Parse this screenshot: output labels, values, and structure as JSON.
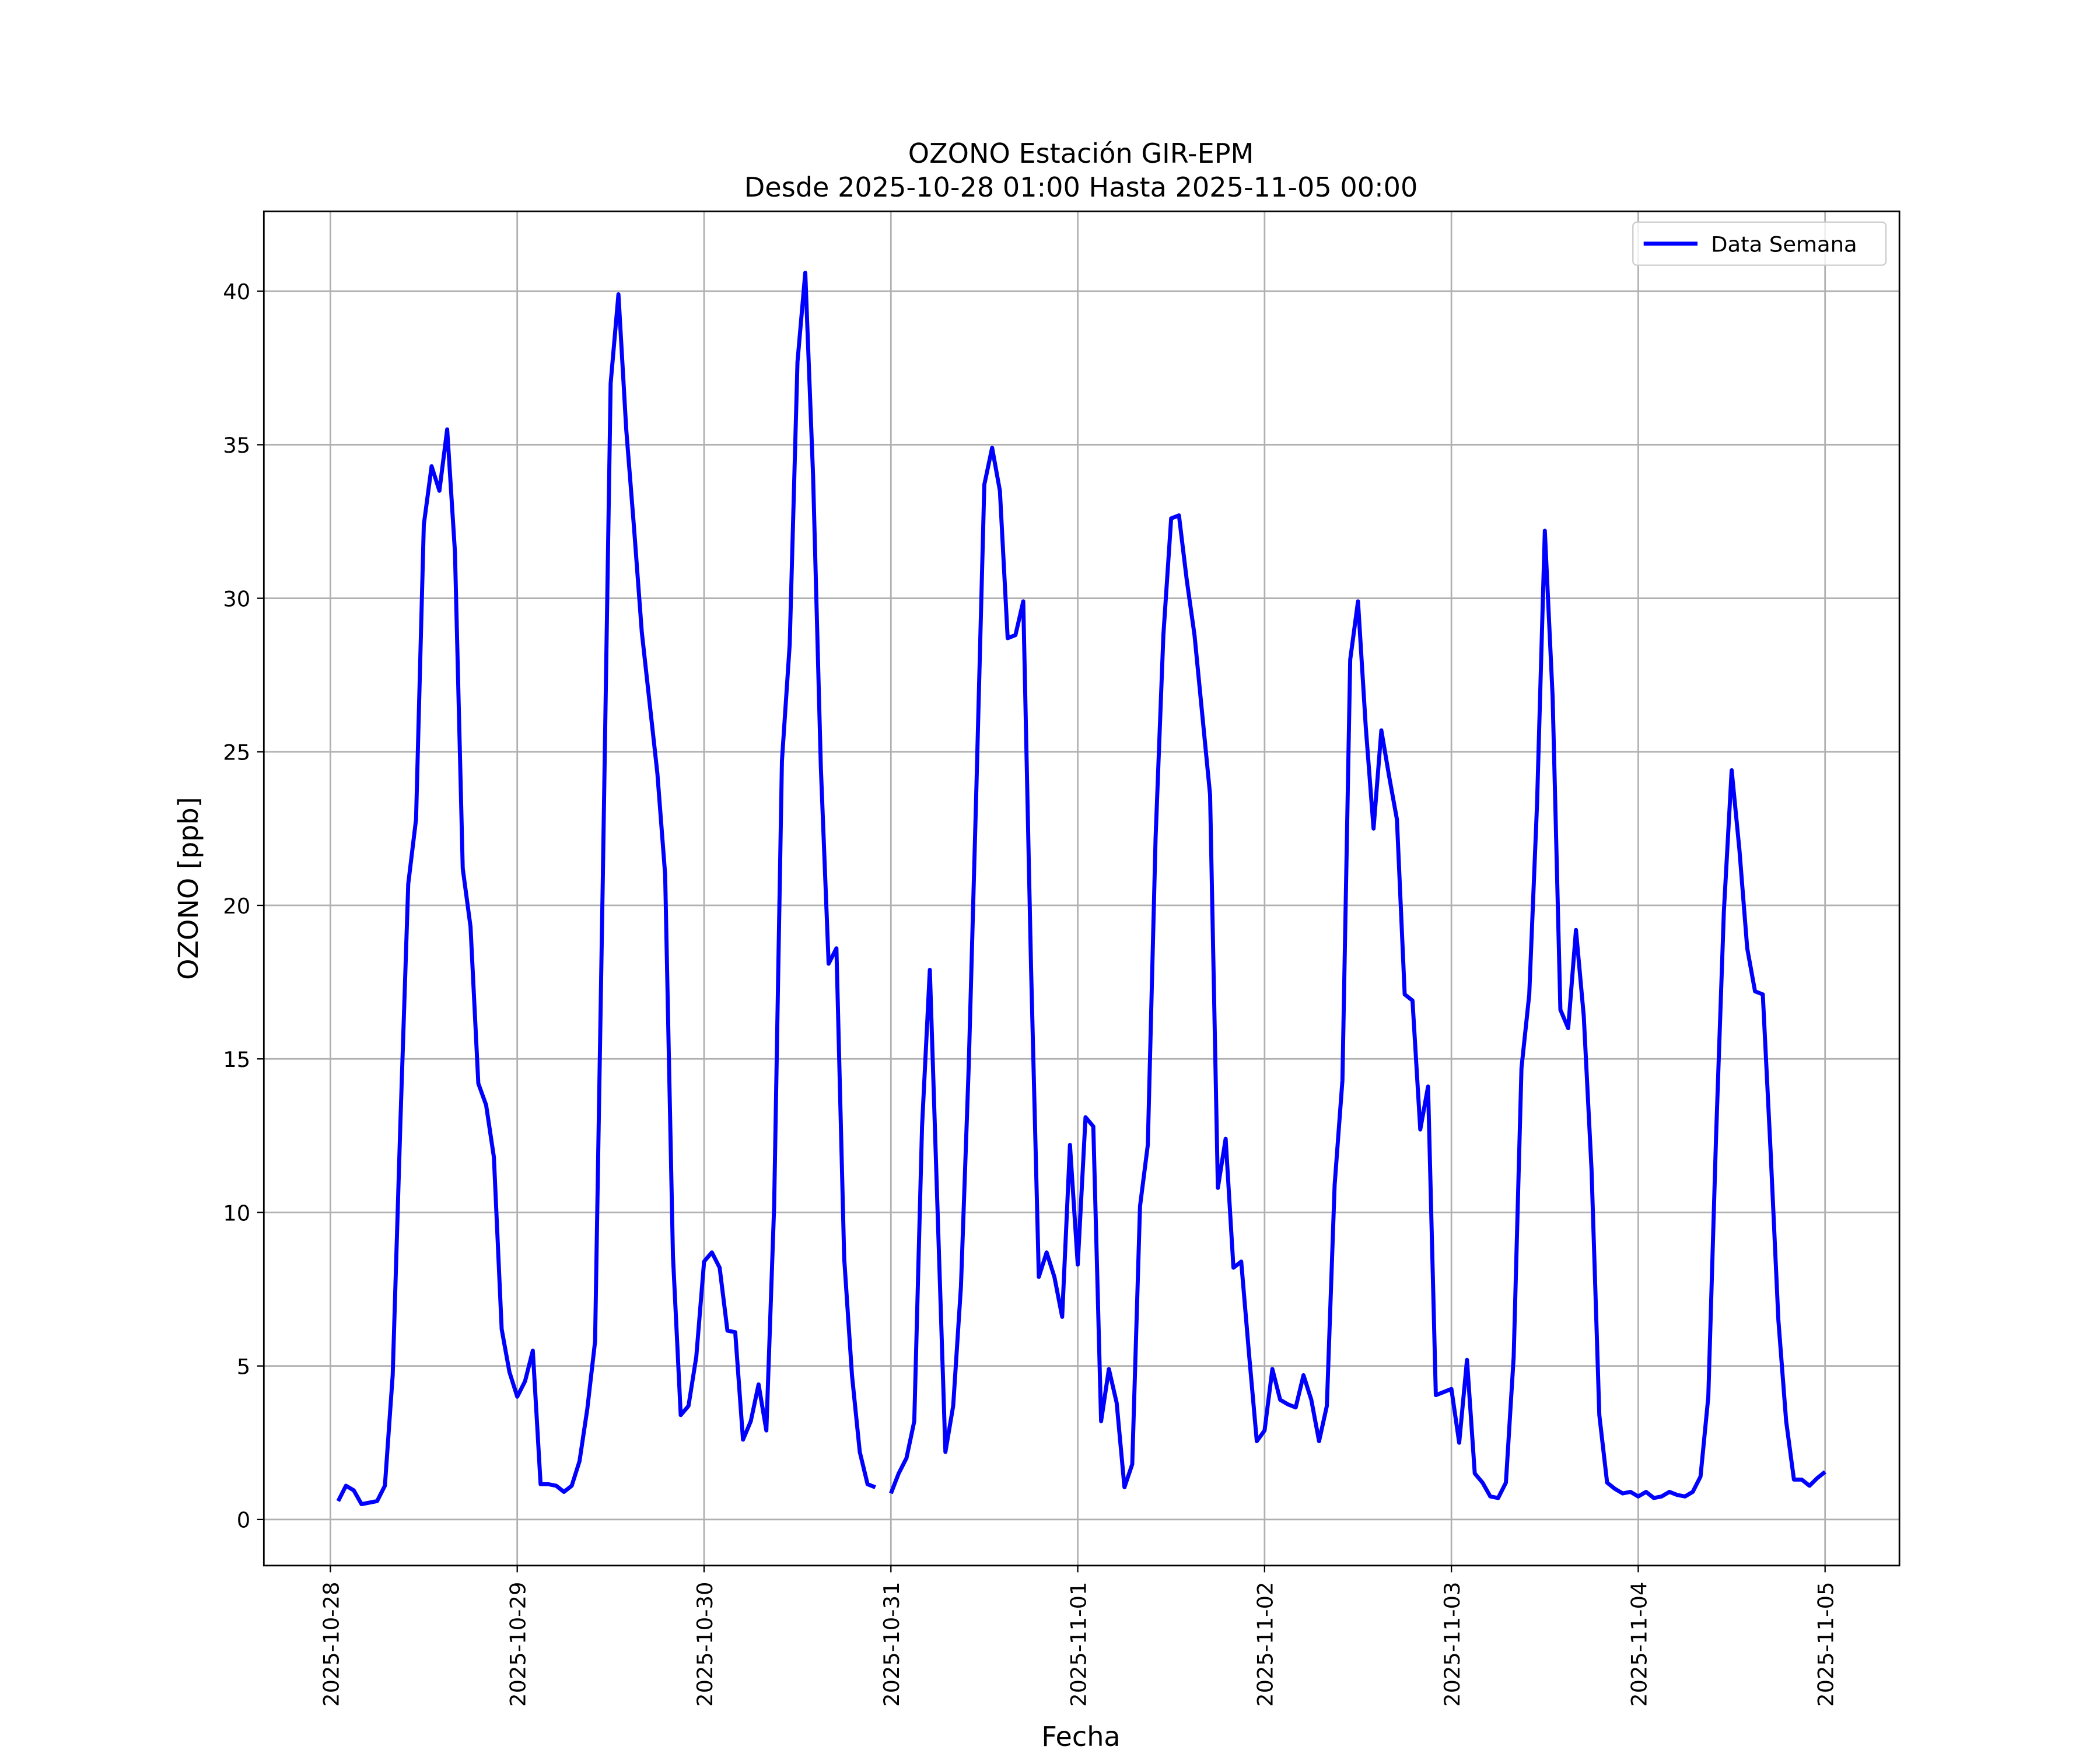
{
  "chart_data": {
    "type": "line",
    "title": "OZONO Estación GIR-EPM",
    "subtitle": "Desde 2025-10-28 01:00 Hasta 2025-11-05 00:00",
    "x_label": "Fecha",
    "y_label": "OZONO [ppb]",
    "grid": true,
    "legend": "upper right",
    "xlim": [
      "2025-10-27 15:27",
      "2025-11-05 09:33"
    ],
    "xticks": [
      "2025-10-28",
      "2025-10-29",
      "2025-10-30",
      "2025-10-31",
      "2025-11-01",
      "2025-11-02",
      "2025-11-03",
      "2025-11-04",
      "2025-11-05"
    ],
    "ylim": [
      -1.5,
      42.6
    ],
    "yticks": [
      0,
      5,
      10,
      15,
      20,
      25,
      30,
      35,
      40
    ],
    "x": [
      "2025-10-28 01:00",
      "2025-10-28 02:00",
      "2025-10-28 03:00",
      "2025-10-28 04:00",
      "2025-10-28 05:00",
      "2025-10-28 06:00",
      "2025-10-28 07:00",
      "2025-10-28 08:00",
      "2025-10-28 09:00",
      "2025-10-28 10:00",
      "2025-10-28 11:00",
      "2025-10-28 12:00",
      "2025-10-28 13:00",
      "2025-10-28 14:00",
      "2025-10-28 15:00",
      "2025-10-28 16:00",
      "2025-10-28 17:00",
      "2025-10-28 18:00",
      "2025-10-28 19:00",
      "2025-10-28 20:00",
      "2025-10-28 21:00",
      "2025-10-28 22:00",
      "2025-10-28 23:00",
      "2025-10-29 00:00",
      "2025-10-29 01:00",
      "2025-10-29 02:00",
      "2025-10-29 03:00",
      "2025-10-29 04:00",
      "2025-10-29 05:00",
      "2025-10-29 06:00",
      "2025-10-29 07:00",
      "2025-10-29 08:00",
      "2025-10-29 09:00",
      "2025-10-29 10:00",
      "2025-10-29 11:00",
      "2025-10-29 12:00",
      "2025-10-29 13:00",
      "2025-10-29 14:00",
      "2025-10-29 15:00",
      "2025-10-29 16:00",
      "2025-10-29 17:00",
      "2025-10-29 18:00",
      "2025-10-29 19:00",
      "2025-10-29 20:00",
      "2025-10-29 21:00",
      "2025-10-29 22:00",
      "2025-10-29 23:00",
      "2025-10-30 00:00",
      "2025-10-30 01:00",
      "2025-10-30 02:00",
      "2025-10-30 03:00",
      "2025-10-30 04:00",
      "2025-10-30 05:00",
      "2025-10-30 06:00",
      "2025-10-30 07:00",
      "2025-10-30 08:00",
      "2025-10-30 09:00",
      "2025-10-30 10:00",
      "2025-10-30 11:00",
      "2025-10-30 12:00",
      "2025-10-30 13:00",
      "2025-10-30 14:00",
      "2025-10-30 15:00",
      "2025-10-30 16:00",
      "2025-10-30 17:00",
      "2025-10-30 18:00",
      "2025-10-30 19:00",
      "2025-10-30 20:00",
      "2025-10-30 21:00",
      "2025-10-30 22:00",
      "2025-10-30 23:00",
      "2025-10-31 00:00",
      "2025-10-31 01:00",
      "2025-10-31 02:00",
      "2025-10-31 03:00",
      "2025-10-31 04:00",
      "2025-10-31 05:00",
      "2025-10-31 06:00",
      "2025-10-31 07:00",
      "2025-10-31 08:00",
      "2025-10-31 09:00",
      "2025-10-31 10:00",
      "2025-10-31 11:00",
      "2025-10-31 12:00",
      "2025-10-31 13:00",
      "2025-10-31 14:00",
      "2025-10-31 15:00",
      "2025-10-31 16:00",
      "2025-10-31 17:00",
      "2025-10-31 18:00",
      "2025-10-31 19:00",
      "2025-10-31 20:00",
      "2025-10-31 21:00",
      "2025-10-31 22:00",
      "2025-10-31 23:00",
      "2025-11-01 00:00",
      "2025-11-01 01:00",
      "2025-11-01 02:00",
      "2025-11-01 03:00",
      "2025-11-01 04:00",
      "2025-11-01 05:00",
      "2025-11-01 06:00",
      "2025-11-01 07:00",
      "2025-11-01 08:00",
      "2025-11-01 09:00",
      "2025-11-01 10:00",
      "2025-11-01 11:00",
      "2025-11-01 12:00",
      "2025-11-01 13:00",
      "2025-11-01 14:00",
      "2025-11-01 15:00",
      "2025-11-01 16:00",
      "2025-11-01 17:00",
      "2025-11-01 18:00",
      "2025-11-01 19:00",
      "2025-11-01 20:00",
      "2025-11-01 21:00",
      "2025-11-01 22:00",
      "2025-11-01 23:00",
      "2025-11-02 00:00",
      "2025-11-02 01:00",
      "2025-11-02 02:00",
      "2025-11-02 03:00",
      "2025-11-02 04:00",
      "2025-11-02 05:00",
      "2025-11-02 06:00",
      "2025-11-02 07:00",
      "2025-11-02 08:00",
      "2025-11-02 09:00",
      "2025-11-02 10:00",
      "2025-11-02 11:00",
      "2025-11-02 12:00",
      "2025-11-02 13:00",
      "2025-11-02 14:00",
      "2025-11-02 15:00",
      "2025-11-02 16:00",
      "2025-11-02 17:00",
      "2025-11-02 18:00",
      "2025-11-02 19:00",
      "2025-11-02 20:00",
      "2025-11-02 21:00",
      "2025-11-02 22:00",
      "2025-11-02 23:00",
      "2025-11-03 00:00",
      "2025-11-03 01:00",
      "2025-11-03 02:00",
      "2025-11-03 03:00",
      "2025-11-03 04:00",
      "2025-11-03 05:00",
      "2025-11-03 06:00",
      "2025-11-03 07:00",
      "2025-11-03 08:00",
      "2025-11-03 09:00",
      "2025-11-03 10:00",
      "2025-11-03 11:00",
      "2025-11-03 12:00",
      "2025-11-03 13:00",
      "2025-11-03 14:00",
      "2025-11-03 15:00",
      "2025-11-03 16:00",
      "2025-11-03 17:00",
      "2025-11-03 18:00",
      "2025-11-03 19:00",
      "2025-11-03 20:00",
      "2025-11-03 21:00",
      "2025-11-03 22:00",
      "2025-11-03 23:00",
      "2025-11-04 00:00",
      "2025-11-04 01:00",
      "2025-11-04 02:00",
      "2025-11-04 03:00",
      "2025-11-04 04:00",
      "2025-11-04 05:00",
      "2025-11-04 06:00",
      "2025-11-04 07:00",
      "2025-11-04 08:00",
      "2025-11-04 09:00",
      "2025-11-04 10:00",
      "2025-11-04 11:00",
      "2025-11-04 12:00",
      "2025-11-04 13:00",
      "2025-11-04 14:00",
      "2025-11-04 15:00",
      "2025-11-04 16:00",
      "2025-11-04 17:00",
      "2025-11-04 18:00",
      "2025-11-04 19:00",
      "2025-11-04 20:00",
      "2025-11-04 21:00",
      "2025-11-04 22:00",
      "2025-11-04 23:00",
      "2025-11-05 00:00"
    ],
    "series": [
      {
        "name": "Data Semana",
        "color": "#0000ff",
        "values": [
          0.6,
          1.1,
          0.95,
          0.5,
          0.55,
          0.6,
          1.1,
          4.7,
          13.0,
          20.7,
          22.8,
          32.4,
          34.3,
          33.5,
          35.5,
          31.5,
          21.2,
          19.3,
          14.2,
          13.5,
          11.8,
          6.2,
          4.8,
          4.0,
          4.5,
          5.5,
          1.15,
          1.15,
          1.1,
          0.9,
          1.1,
          1.9,
          3.6,
          5.8,
          21.0,
          37.0,
          39.9,
          35.5,
          32.3,
          28.9,
          26.6,
          24.3,
          21.0,
          8.6,
          3.4,
          3.7,
          5.3,
          8.4,
          8.7,
          8.2,
          6.15,
          6.1,
          2.6,
          3.2,
          4.4,
          2.9,
          10.2,
          24.7,
          28.5,
          37.7,
          40.6,
          34.0,
          24.5,
          18.1,
          18.6,
          8.5,
          4.7,
          2.2,
          1.15,
          1.05,
          null,
          0.85,
          1.5,
          2.0,
          3.2,
          12.8,
          17.9,
          10.0,
          2.2,
          3.7,
          7.6,
          14.8,
          24.0,
          33.7,
          34.9,
          33.5,
          28.7,
          28.8,
          29.9,
          18.0,
          7.9,
          8.7,
          7.9,
          6.6,
          12.2,
          8.3,
          13.1,
          12.8,
          3.2,
          4.9,
          3.8,
          1.05,
          1.8,
          10.2,
          12.2,
          22.2,
          28.8,
          32.6,
          32.7,
          30.6,
          28.8,
          26.2,
          23.6,
          10.8,
          12.4,
          8.2,
          8.4,
          5.4,
          2.55,
          2.9,
          4.9,
          3.9,
          3.75,
          3.65,
          4.7,
          3.9,
          2.55,
          3.7,
          10.9,
          14.3,
          28.0,
          29.9,
          25.8,
          22.5,
          25.7,
          24.2,
          22.8,
          17.1,
          16.9,
          12.7,
          14.1,
          4.05,
          4.15,
          4.25,
          2.5,
          5.2,
          1.5,
          1.2,
          0.75,
          0.7,
          1.2,
          5.3,
          14.7,
          17.1,
          23.3,
          32.2,
          26.8,
          16.6,
          16.0,
          19.2,
          16.4,
          11.4,
          3.4,
          1.2,
          1.0,
          0.85,
          0.9,
          0.75,
          0.9,
          0.7,
          0.75,
          0.9,
          0.8,
          0.75,
          0.9,
          1.4,
          4.0,
          12.5,
          19.8,
          24.4,
          21.8,
          18.6,
          17.2,
          17.1,
          12.0,
          6.5,
          3.2,
          1.3,
          1.3,
          1.1,
          1.35,
          1.55
        ]
      }
    ]
  }
}
